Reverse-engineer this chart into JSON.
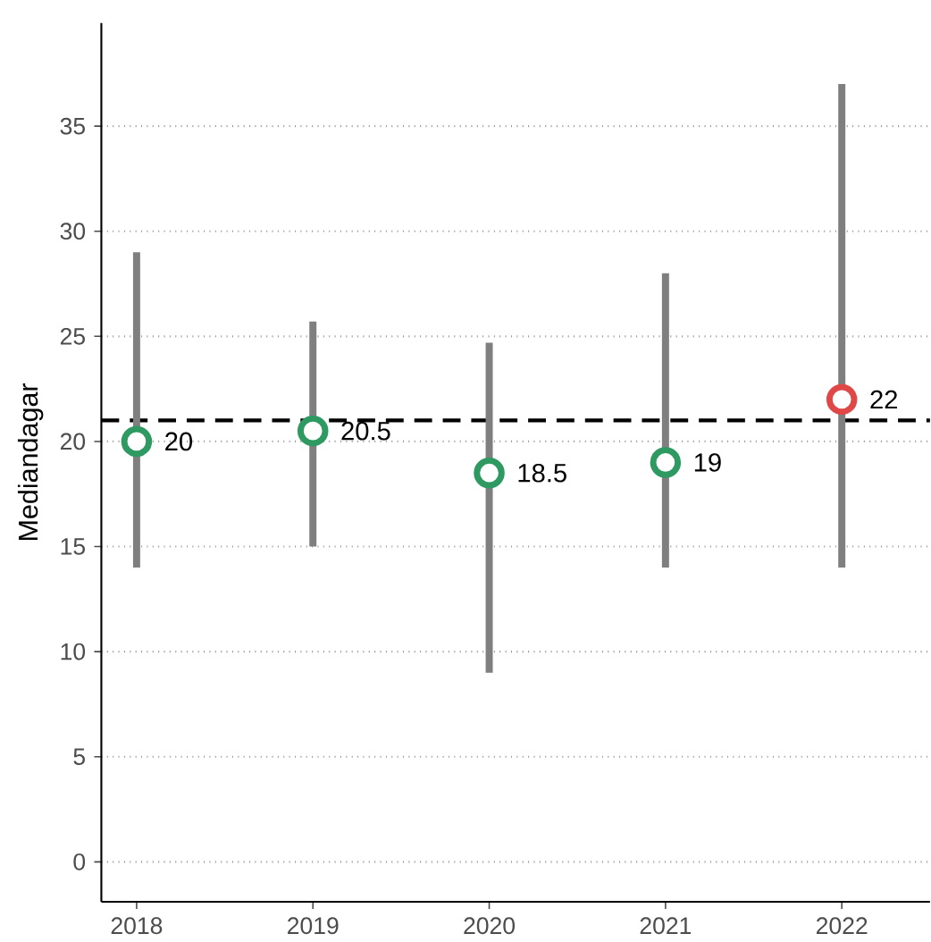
{
  "chart_data": {
    "type": "scatter",
    "ylabel": "Mediandagar",
    "categories": [
      "2018",
      "2019",
      "2020",
      "2021",
      "2022"
    ],
    "values": [
      20,
      20.5,
      18.5,
      19,
      22
    ],
    "colors": [
      "#2e9a62",
      "#2e9a62",
      "#2e9a62",
      "#2e9a62",
      "#e04848"
    ],
    "errors": [
      [
        14,
        29
      ],
      [
        15,
        25.7
      ],
      [
        9,
        24.7
      ],
      [
        14,
        28
      ],
      [
        14,
        37
      ]
    ],
    "ylim": [
      -1.9,
      39.9
    ],
    "yticks": [
      0,
      5,
      10,
      15,
      20,
      25,
      30,
      35
    ],
    "ref_lines": [
      {
        "axis": "y",
        "value": 21,
        "line_style": "dashed",
        "color": "#000000"
      }
    ],
    "grid": "y",
    "marker": "circle",
    "data_labels": true
  }
}
